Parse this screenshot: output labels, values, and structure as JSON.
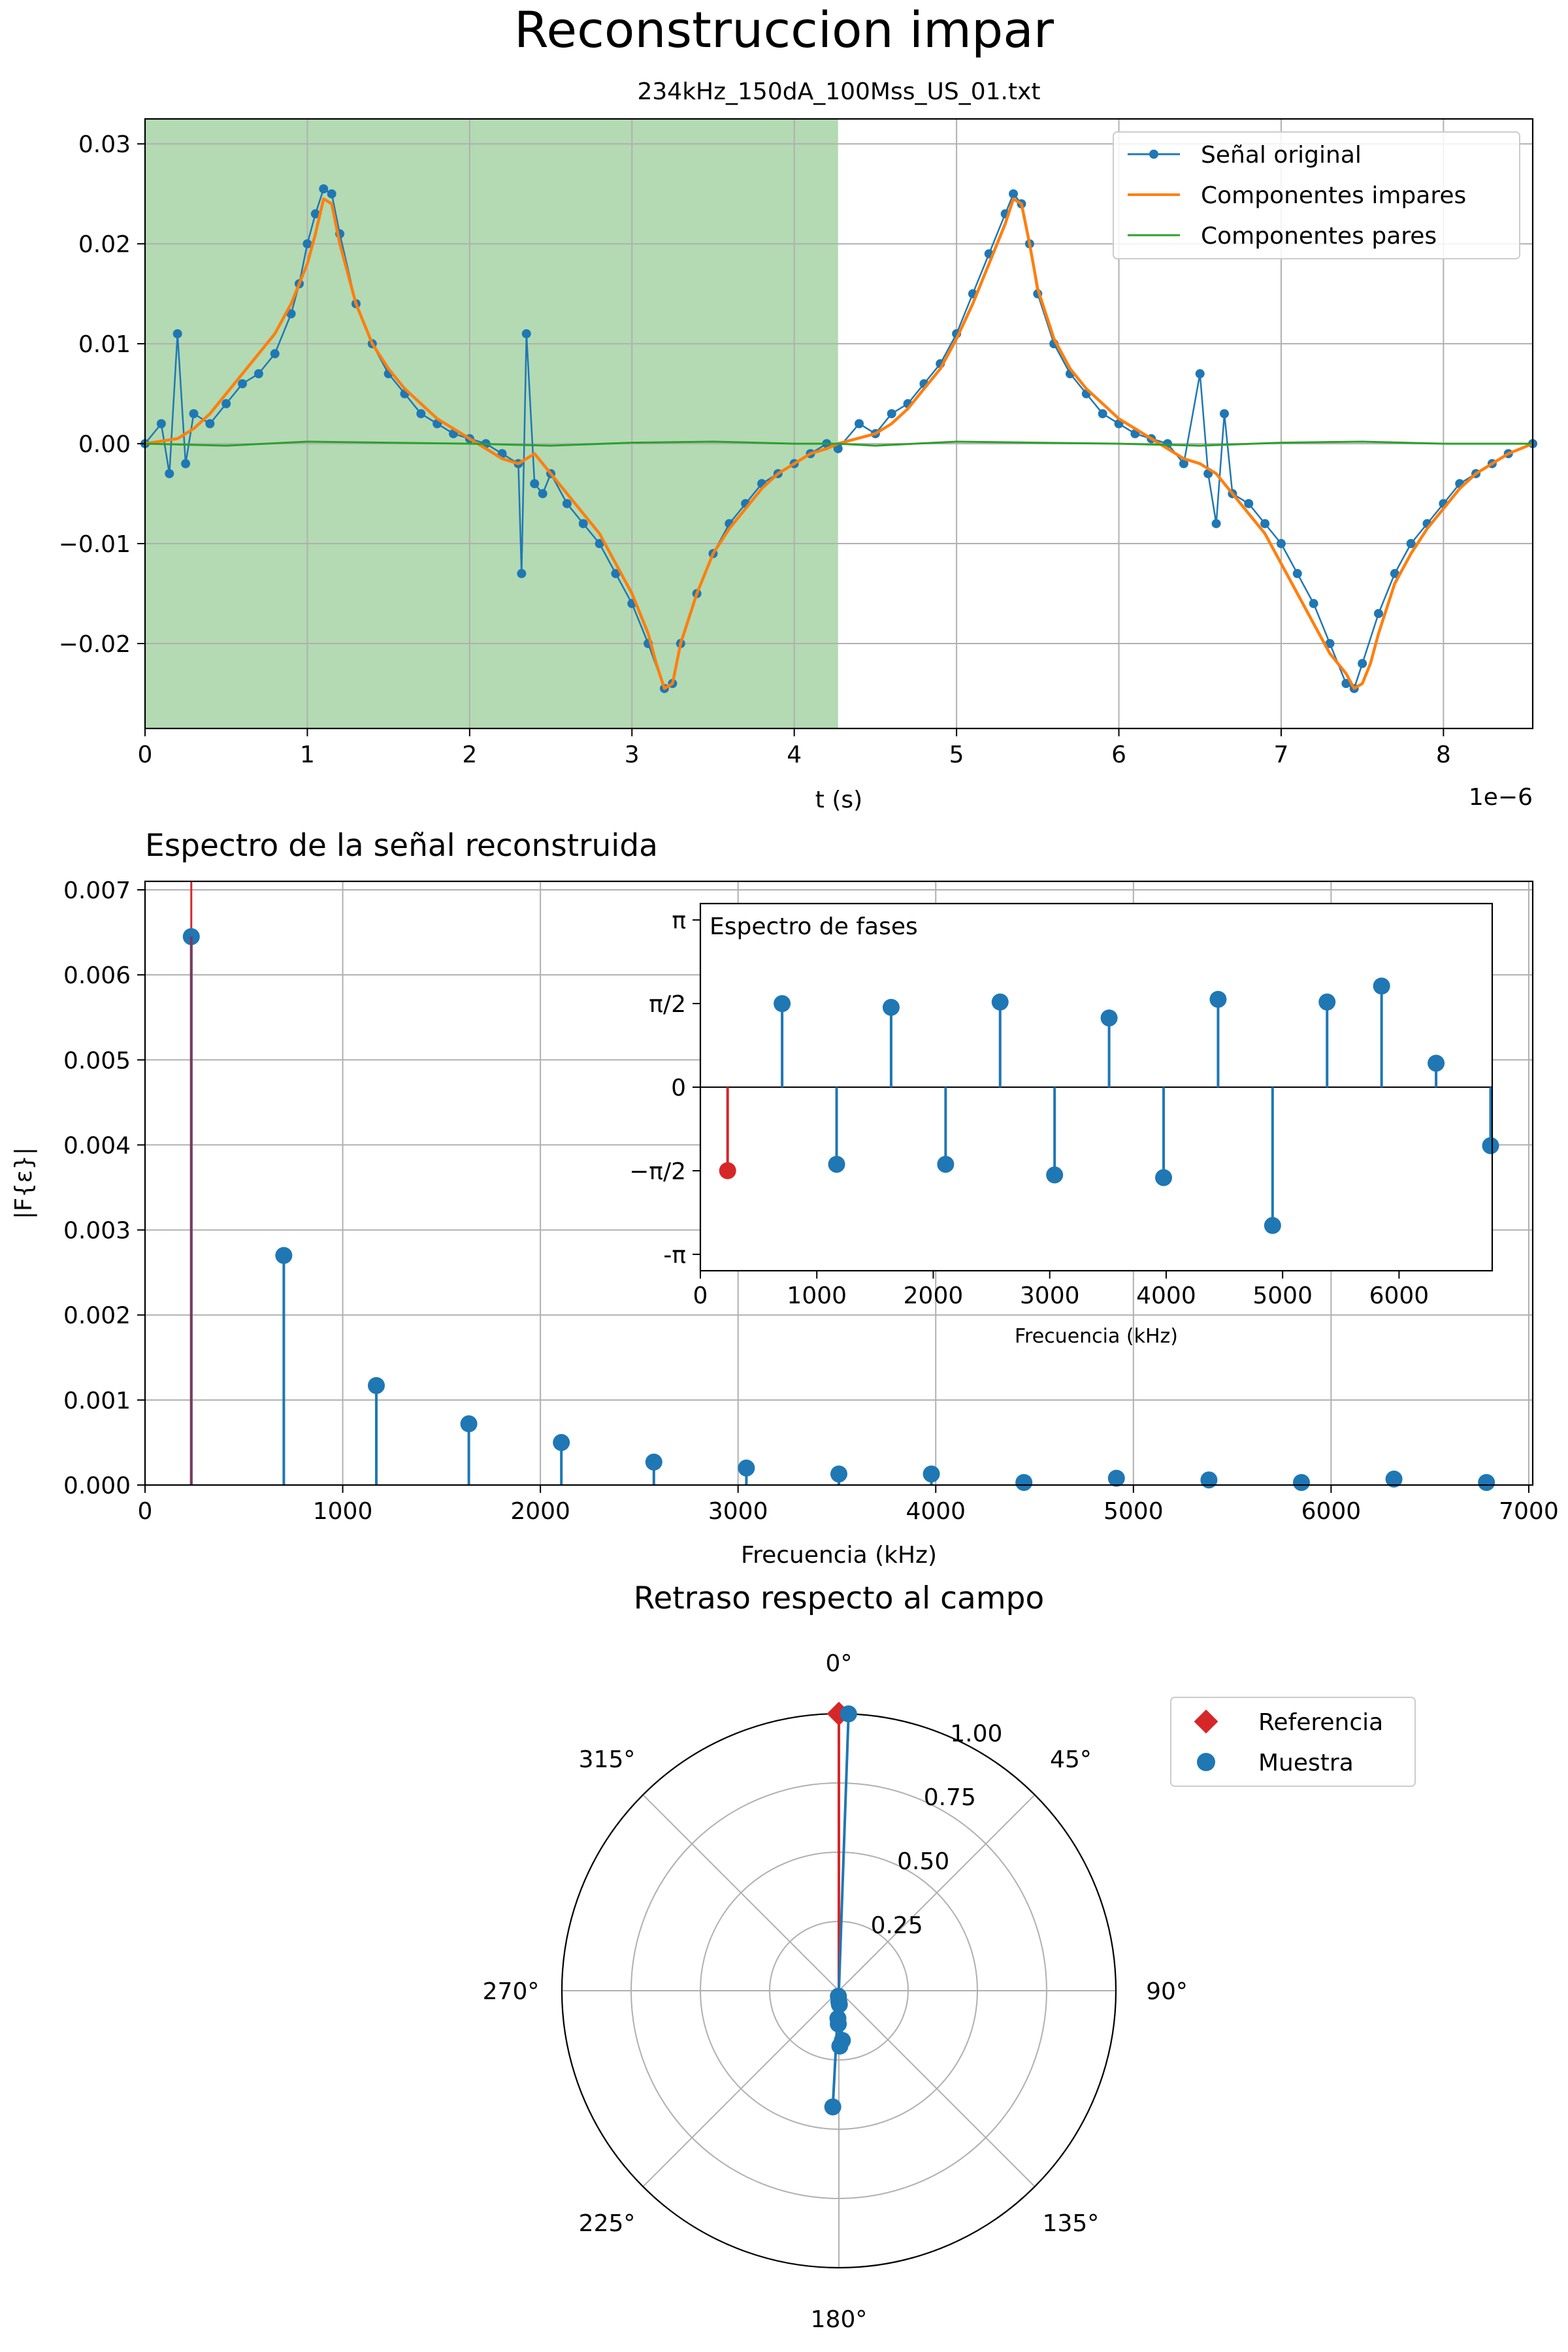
{
  "figure": {
    "suptitle": "Reconstruccion impar"
  },
  "colors": {
    "blue": "#1f77b4",
    "orange": "#ff7f0e",
    "green": "#2ca02c",
    "red": "#d62728",
    "shade": "#b3dab3",
    "grid": "#b0b0b0"
  },
  "chart_data": [
    {
      "type": "line",
      "title": "234kHz_150dA_100Mss_US_01.txt",
      "xlabel": "t (s)",
      "x_offset_label": "1e−6",
      "ylabel": "",
      "xlim": [
        0,
        8.55
      ],
      "ylim": [
        -0.0285,
        0.0325
      ],
      "xticks": [
        0,
        1,
        2,
        3,
        4,
        5,
        6,
        7,
        8
      ],
      "xtick_labels": [
        "0",
        "1",
        "2",
        "3",
        "4",
        "5",
        "6",
        "7",
        "8"
      ],
      "yticks": [
        -0.02,
        -0.01,
        0.0,
        0.01,
        0.02,
        0.03
      ],
      "ytick_labels": [
        "−0.02",
        "−0.01",
        "0.00",
        "0.01",
        "0.02",
        "0.03"
      ],
      "shaded_xrange": [
        0,
        4.27
      ],
      "grid": true,
      "legend_position": "upper-right",
      "series": [
        {
          "name": "Señal original",
          "style": "line-with-markers",
          "x": [
            0,
            0.1,
            0.15,
            0.2,
            0.25,
            0.3,
            0.4,
            0.5,
            0.6,
            0.7,
            0.8,
            0.9,
            0.95,
            1.0,
            1.05,
            1.1,
            1.15,
            1.2,
            1.3,
            1.4,
            1.5,
            1.6,
            1.7,
            1.8,
            1.9,
            2.0,
            2.1,
            2.2,
            2.3,
            2.32,
            2.35,
            2.4,
            2.45,
            2.5,
            2.6,
            2.7,
            2.8,
            2.9,
            3.0,
            3.1,
            3.2,
            3.25,
            3.3,
            3.4,
            3.5,
            3.6,
            3.7,
            3.8,
            3.9,
            4.0,
            4.1,
            4.2,
            4.27,
            4.4,
            4.5,
            4.6,
            4.7,
            4.8,
            4.9,
            5.0,
            5.1,
            5.2,
            5.3,
            5.35,
            5.4,
            5.45,
            5.5,
            5.6,
            5.7,
            5.8,
            5.9,
            6.0,
            6.1,
            6.2,
            6.3,
            6.4,
            6.5,
            6.55,
            6.6,
            6.65,
            6.7,
            6.8,
            6.9,
            7.0,
            7.1,
            7.2,
            7.3,
            7.4,
            7.45,
            7.5,
            7.6,
            7.7,
            7.8,
            7.9,
            8.0,
            8.1,
            8.2,
            8.3,
            8.4,
            8.55
          ],
          "y": [
            0.0,
            0.002,
            -0.003,
            0.011,
            -0.002,
            0.003,
            0.002,
            0.004,
            0.006,
            0.007,
            0.009,
            0.013,
            0.016,
            0.02,
            0.023,
            0.0255,
            0.025,
            0.021,
            0.014,
            0.01,
            0.007,
            0.005,
            0.003,
            0.002,
            0.001,
            0.0005,
            0.0,
            -0.001,
            -0.002,
            -0.013,
            0.011,
            -0.004,
            -0.005,
            -0.003,
            -0.006,
            -0.008,
            -0.01,
            -0.013,
            -0.016,
            -0.02,
            -0.0245,
            -0.024,
            -0.02,
            -0.015,
            -0.011,
            -0.008,
            -0.006,
            -0.004,
            -0.003,
            -0.002,
            -0.001,
            0.0,
            -0.0005,
            0.002,
            0.001,
            0.003,
            0.004,
            0.006,
            0.008,
            0.011,
            0.015,
            0.019,
            0.023,
            0.025,
            0.024,
            0.02,
            0.015,
            0.01,
            0.007,
            0.005,
            0.003,
            0.002,
            0.001,
            0.0005,
            0.0,
            -0.002,
            0.007,
            -0.003,
            -0.008,
            0.003,
            -0.005,
            -0.006,
            -0.008,
            -0.01,
            -0.013,
            -0.016,
            -0.02,
            -0.024,
            -0.0245,
            -0.022,
            -0.017,
            -0.013,
            -0.01,
            -0.008,
            -0.006,
            -0.004,
            -0.003,
            -0.002,
            -0.001,
            0.0
          ]
        },
        {
          "name": "Componentes impares",
          "style": "line",
          "x": [
            0,
            0.2,
            0.3,
            0.4,
            0.5,
            0.6,
            0.7,
            0.8,
            0.9,
            1.0,
            1.05,
            1.1,
            1.15,
            1.2,
            1.3,
            1.4,
            1.5,
            1.6,
            1.7,
            1.8,
            1.9,
            2.0,
            2.1,
            2.2,
            2.3,
            2.4,
            2.5,
            2.6,
            2.7,
            2.8,
            2.9,
            3.0,
            3.1,
            3.15,
            3.2,
            3.25,
            3.3,
            3.4,
            3.5,
            3.6,
            3.7,
            3.8,
            3.9,
            4.0,
            4.1,
            4.2,
            4.27,
            4.5,
            4.6,
            4.7,
            4.8,
            4.9,
            5.0,
            5.1,
            5.2,
            5.3,
            5.35,
            5.4,
            5.45,
            5.5,
            5.6,
            5.7,
            5.8,
            5.9,
            6.0,
            6.1,
            6.2,
            6.3,
            6.4,
            6.5,
            6.6,
            6.7,
            6.8,
            6.9,
            7.0,
            7.1,
            7.2,
            7.3,
            7.4,
            7.45,
            7.5,
            7.55,
            7.6,
            7.7,
            7.8,
            7.9,
            8.0,
            8.1,
            8.2,
            8.3,
            8.4,
            8.55
          ],
          "y": [
            0.0,
            0.0005,
            0.0015,
            0.003,
            0.005,
            0.007,
            0.009,
            0.011,
            0.014,
            0.018,
            0.021,
            0.0245,
            0.024,
            0.02,
            0.014,
            0.01,
            0.0075,
            0.0055,
            0.004,
            0.0025,
            0.0015,
            0.0005,
            -0.0005,
            -0.0015,
            -0.002,
            -0.001,
            -0.003,
            -0.005,
            -0.007,
            -0.009,
            -0.012,
            -0.015,
            -0.019,
            -0.022,
            -0.0245,
            -0.024,
            -0.02,
            -0.015,
            -0.011,
            -0.0085,
            -0.0065,
            -0.0045,
            -0.003,
            -0.002,
            -0.001,
            -0.0005,
            0.0,
            0.001,
            0.002,
            0.0035,
            0.0055,
            0.0075,
            0.0105,
            0.014,
            0.018,
            0.022,
            0.0245,
            0.024,
            0.02,
            0.0155,
            0.0105,
            0.0075,
            0.0055,
            0.004,
            0.0025,
            0.0015,
            0.0005,
            -0.0005,
            -0.0015,
            -0.002,
            -0.003,
            -0.005,
            -0.007,
            -0.009,
            -0.012,
            -0.015,
            -0.018,
            -0.021,
            -0.023,
            -0.0245,
            -0.024,
            -0.022,
            -0.019,
            -0.014,
            -0.011,
            -0.0085,
            -0.0065,
            -0.0045,
            -0.003,
            -0.002,
            -0.001,
            0.0
          ]
        },
        {
          "name": "Componentes pares",
          "style": "line",
          "x": [
            0,
            0.5,
            1.0,
            1.5,
            2.0,
            2.5,
            3.0,
            3.5,
            4.0,
            4.27,
            4.5,
            5.0,
            5.5,
            6.0,
            6.5,
            7.0,
            7.5,
            8.0,
            8.55
          ],
          "y": [
            0.0,
            -0.0002,
            0.0002,
            0.0001,
            0.0,
            -0.0002,
            0.0001,
            0.0002,
            0.0,
            0.0,
            -0.0002,
            0.0002,
            0.0001,
            0.0,
            -0.0002,
            0.0001,
            0.0002,
            0.0,
            0.0
          ]
        }
      ]
    },
    {
      "type": "stem",
      "title": "Espectro de la señal reconstruida",
      "xlabel": "Frecuencia (kHz)",
      "ylabel": "|F{ε}|",
      "xlim": [
        0,
        7020
      ],
      "ylim": [
        0,
        0.0071
      ],
      "xticks": [
        0,
        1000,
        2000,
        3000,
        4000,
        5000,
        6000,
        7000
      ],
      "xtick_labels": [
        "0",
        "1000",
        "2000",
        "3000",
        "4000",
        "5000",
        "6000",
        "7000"
      ],
      "yticks": [
        0.0,
        0.001,
        0.002,
        0.003,
        0.004,
        0.005,
        0.006,
        0.007
      ],
      "ytick_labels": [
        "0.000",
        "0.001",
        "0.002",
        "0.003",
        "0.004",
        "0.005",
        "0.006",
        "0.007"
      ],
      "grid": true,
      "reference_line_x": 234,
      "x": [
        234,
        702,
        1170,
        1638,
        2106,
        2574,
        3042,
        3510,
        3978,
        4446,
        4914,
        5382,
        5850,
        6318,
        6786
      ],
      "values": [
        0.00645,
        0.0027,
        0.00117,
        0.00072,
        0.0005,
        0.00027,
        0.0002,
        0.00013,
        0.00013,
        3e-05,
        8e-05,
        6e-05,
        3e-05,
        7e-05,
        3e-05
      ]
    },
    {
      "type": "stem",
      "title": "",
      "inset_label": "Espectro de fases",
      "xlabel": "Frecuencia (kHz)",
      "ylabel": "",
      "xlim": [
        0,
        6800
      ],
      "ylim": [
        -3.45,
        3.45
      ],
      "xticks": [
        0,
        1000,
        2000,
        3000,
        4000,
        5000,
        6000
      ],
      "xtick_labels": [
        "0",
        "1000",
        "2000",
        "3000",
        "4000",
        "5000",
        "6000"
      ],
      "yticks": [
        -3.14159,
        -1.5708,
        0,
        1.5708,
        3.14159
      ],
      "ytick_labels": [
        "-π",
        "−π/2",
        "0",
        "π/2",
        "π"
      ],
      "grid": false,
      "reference_index": 0,
      "x": [
        234,
        702,
        1170,
        1638,
        2106,
        2574,
        3042,
        3510,
        3978,
        4446,
        4914,
        5382,
        5850,
        6318,
        6786
      ],
      "values": [
        -1.57,
        1.57,
        -1.45,
        1.5,
        -1.45,
        1.6,
        -1.65,
        1.3,
        -1.7,
        1.65,
        -2.6,
        1.6,
        1.9,
        0.45,
        -1.1
      ]
    },
    {
      "type": "polar",
      "title": "Retraso respecto al campo",
      "theta_direction": "clockwise",
      "theta_zero": "top",
      "rlim": [
        0,
        1.0
      ],
      "rticks": [
        0.25,
        0.5,
        0.75,
        1.0
      ],
      "rtick_labels": [
        "0.25",
        "0.50",
        "0.75",
        "1.00"
      ],
      "theta_ticks_deg": [
        0,
        45,
        90,
        135,
        180,
        225,
        270,
        315
      ],
      "theta_tick_labels": [
        "0°",
        "45°",
        "90°",
        "135°",
        "180°",
        "225°",
        "270°",
        "315°"
      ],
      "legend_position": "upper-right",
      "series": [
        {
          "name": "Referencia",
          "marker": "diamond",
          "theta_deg": [
            0
          ],
          "r": [
            1.0
          ]
        },
        {
          "name": "Muestra",
          "marker": "circle",
          "theta_deg": [
            2,
            183,
            176,
            182,
            178,
            185,
            180,
            181,
            179
          ],
          "r": [
            1.0,
            0.42,
            0.18,
            0.1,
            0.05,
            0.02,
            0.04,
            0.12,
            0.2
          ]
        }
      ]
    }
  ]
}
